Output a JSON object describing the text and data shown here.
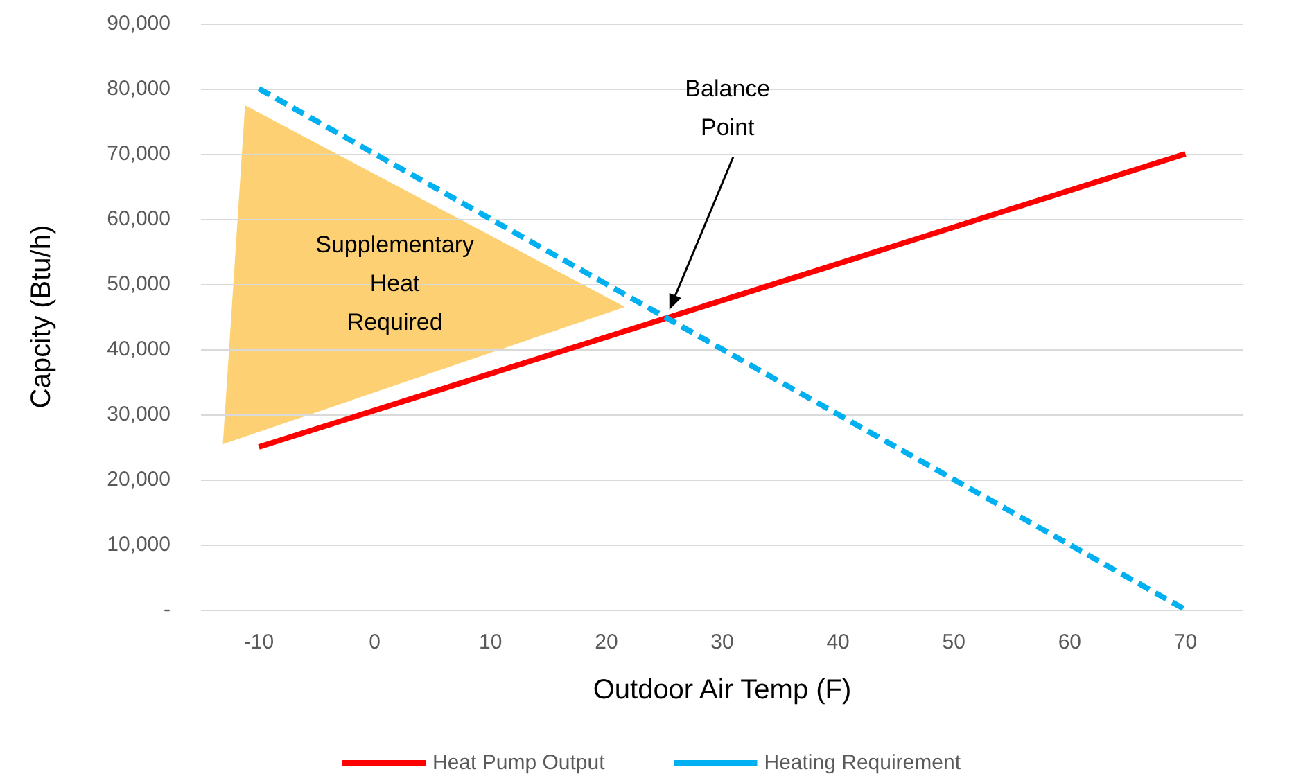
{
  "chart_data": {
    "type": "line",
    "xlabel": "Outdoor Air Temp (F)",
    "ylabel": "Capcity (Btu/h)",
    "x": [
      -10,
      70
    ],
    "series": [
      {
        "name": "Heat Pump Output",
        "color": "#ff0000",
        "values": [
          25000,
          70000
        ],
        "line_style": "solid"
      },
      {
        "name": "Heating Requirement",
        "color": "#00b0f0",
        "values": [
          80000,
          0
        ],
        "line_style": "dashed"
      }
    ],
    "xlim": [
      -15,
      75
    ],
    "xticks": [
      -10,
      0,
      10,
      20,
      30,
      40,
      50,
      60,
      70
    ],
    "ylim": [
      0,
      90000
    ],
    "yticks": [
      {
        "value": 0,
        "label": "-"
      },
      {
        "value": 10000,
        "label": "10,000"
      },
      {
        "value": 20000,
        "label": "20,000"
      },
      {
        "value": 30000,
        "label": "30,000"
      },
      {
        "value": 40000,
        "label": "40,000"
      },
      {
        "value": 50000,
        "label": "50,000"
      },
      {
        "value": 60000,
        "label": "60,000"
      },
      {
        "value": 70000,
        "label": "70,000"
      },
      {
        "value": 80000,
        "label": "80,000"
      },
      {
        "value": 90000,
        "label": "90,000"
      }
    ],
    "grid": "y",
    "legend": "bottom",
    "marker": "none",
    "annotations": [
      "Supplementary Heat Required",
      "Balance Point"
    ]
  }
}
